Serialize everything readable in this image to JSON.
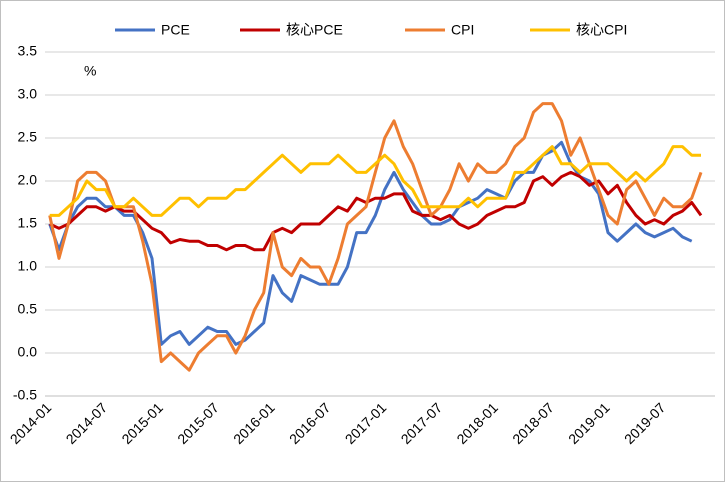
{
  "chart_data": {
    "type": "line",
    "annotation": "%",
    "categories": [
      "2014-01",
      null,
      null,
      null,
      null,
      null,
      "2014-07",
      null,
      null,
      null,
      null,
      null,
      "2015-01",
      null,
      null,
      null,
      null,
      null,
      "2015-07",
      null,
      null,
      null,
      null,
      null,
      "2016-01",
      null,
      null,
      null,
      null,
      null,
      "2016-07",
      null,
      null,
      null,
      null,
      null,
      "2017-01",
      null,
      null,
      null,
      null,
      null,
      "2017-07",
      null,
      null,
      null,
      null,
      null,
      "2018-01",
      null,
      null,
      null,
      null,
      null,
      "2018-07",
      null,
      null,
      null,
      null,
      null,
      "2019-01",
      null,
      null,
      null,
      null,
      null,
      "2019-07",
      null,
      null,
      null,
      null,
      null
    ],
    "series": [
      {
        "name": "PCE",
        "color": "#4472c4",
        "values": [
          1.5,
          1.2,
          1.5,
          1.7,
          1.8,
          1.8,
          1.7,
          1.7,
          1.6,
          1.6,
          1.4,
          1.1,
          0.1,
          0.2,
          0.25,
          0.1,
          0.2,
          0.3,
          0.25,
          0.25,
          0.1,
          0.15,
          0.25,
          0.35,
          0.9,
          0.7,
          0.6,
          0.9,
          0.85,
          0.8,
          0.8,
          0.8,
          1.0,
          1.4,
          1.4,
          1.6,
          1.9,
          2.1,
          1.9,
          1.75,
          1.6,
          1.5,
          1.5,
          1.55,
          1.7,
          1.75,
          1.8,
          1.9,
          1.85,
          1.8,
          2.0,
          2.1,
          2.1,
          2.3,
          2.35,
          2.45,
          2.2,
          2.05,
          2.0,
          1.85,
          1.4,
          1.3,
          1.4,
          1.5,
          1.4,
          1.35,
          1.4,
          1.45,
          1.35,
          1.3,
          null,
          null
        ]
      },
      {
        "name": "核心PCE",
        "color": "#c00000",
        "values": [
          1.5,
          1.45,
          1.5,
          1.6,
          1.7,
          1.7,
          1.65,
          1.7,
          1.65,
          1.65,
          1.55,
          1.45,
          1.4,
          1.28,
          1.32,
          1.3,
          1.3,
          1.25,
          1.25,
          1.2,
          1.25,
          1.25,
          1.2,
          1.2,
          1.4,
          1.45,
          1.4,
          1.5,
          1.5,
          1.5,
          1.6,
          1.7,
          1.65,
          1.8,
          1.75,
          1.8,
          1.8,
          1.85,
          1.85,
          1.65,
          1.6,
          1.6,
          1.55,
          1.6,
          1.5,
          1.45,
          1.5,
          1.6,
          1.65,
          1.7,
          1.7,
          1.75,
          2.0,
          2.05,
          1.95,
          2.05,
          2.1,
          2.05,
          1.95,
          2.0,
          1.85,
          1.95,
          1.75,
          1.6,
          1.5,
          1.55,
          1.5,
          1.6,
          1.65,
          1.75,
          1.6,
          null
        ]
      },
      {
        "name": "CPI",
        "color": "#ed7d31",
        "values": [
          1.6,
          1.1,
          1.5,
          2.0,
          2.1,
          2.1,
          2.0,
          1.7,
          1.7,
          1.7,
          1.3,
          0.8,
          -0.1,
          0.0,
          -0.1,
          -0.2,
          0.0,
          0.1,
          0.2,
          0.2,
          0.0,
          0.2,
          0.5,
          0.7,
          1.4,
          1.0,
          0.9,
          1.1,
          1.0,
          1.0,
          0.8,
          1.1,
          1.5,
          1.6,
          1.7,
          2.1,
          2.5,
          2.7,
          2.4,
          2.2,
          1.9,
          1.6,
          1.7,
          1.9,
          2.2,
          2.0,
          2.2,
          2.1,
          2.1,
          2.2,
          2.4,
          2.5,
          2.8,
          2.9,
          2.9,
          2.7,
          2.3,
          2.5,
          2.2,
          1.9,
          1.6,
          1.5,
          1.9,
          2.0,
          1.8,
          1.6,
          1.8,
          1.7,
          1.7,
          1.8,
          2.1,
          null
        ]
      },
      {
        "name": "核心CPI",
        "color": "#ffc000",
        "values": [
          1.6,
          1.6,
          1.7,
          1.8,
          2.0,
          1.9,
          1.9,
          1.7,
          1.7,
          1.8,
          1.7,
          1.6,
          1.6,
          1.7,
          1.8,
          1.8,
          1.7,
          1.8,
          1.8,
          1.8,
          1.9,
          1.9,
          2.0,
          2.1,
          2.2,
          2.3,
          2.2,
          2.1,
          2.2,
          2.2,
          2.2,
          2.3,
          2.2,
          2.1,
          2.1,
          2.2,
          2.3,
          2.2,
          2.0,
          1.9,
          1.7,
          1.7,
          1.7,
          1.7,
          1.7,
          1.8,
          1.7,
          1.8,
          1.8,
          1.8,
          2.1,
          2.1,
          2.2,
          2.3,
          2.4,
          2.2,
          2.2,
          2.1,
          2.2,
          2.2,
          2.2,
          2.1,
          2.0,
          2.1,
          2.0,
          2.1,
          2.2,
          2.4,
          2.4,
          2.3,
          2.3,
          null
        ]
      }
    ],
    "ylim": [
      -0.5,
      3.5
    ],
    "yticks": [
      -0.5,
      {
        "value": 0,
        "label": "0.0"
      },
      0.5,
      {
        "value": 1,
        "label": "1.0"
      },
      1.5,
      {
        "value": 2,
        "label": "2.0"
      },
      2.5,
      {
        "value": 3,
        "label": "3.0"
      },
      3.5
    ],
    "grid": true,
    "legend": "top"
  }
}
